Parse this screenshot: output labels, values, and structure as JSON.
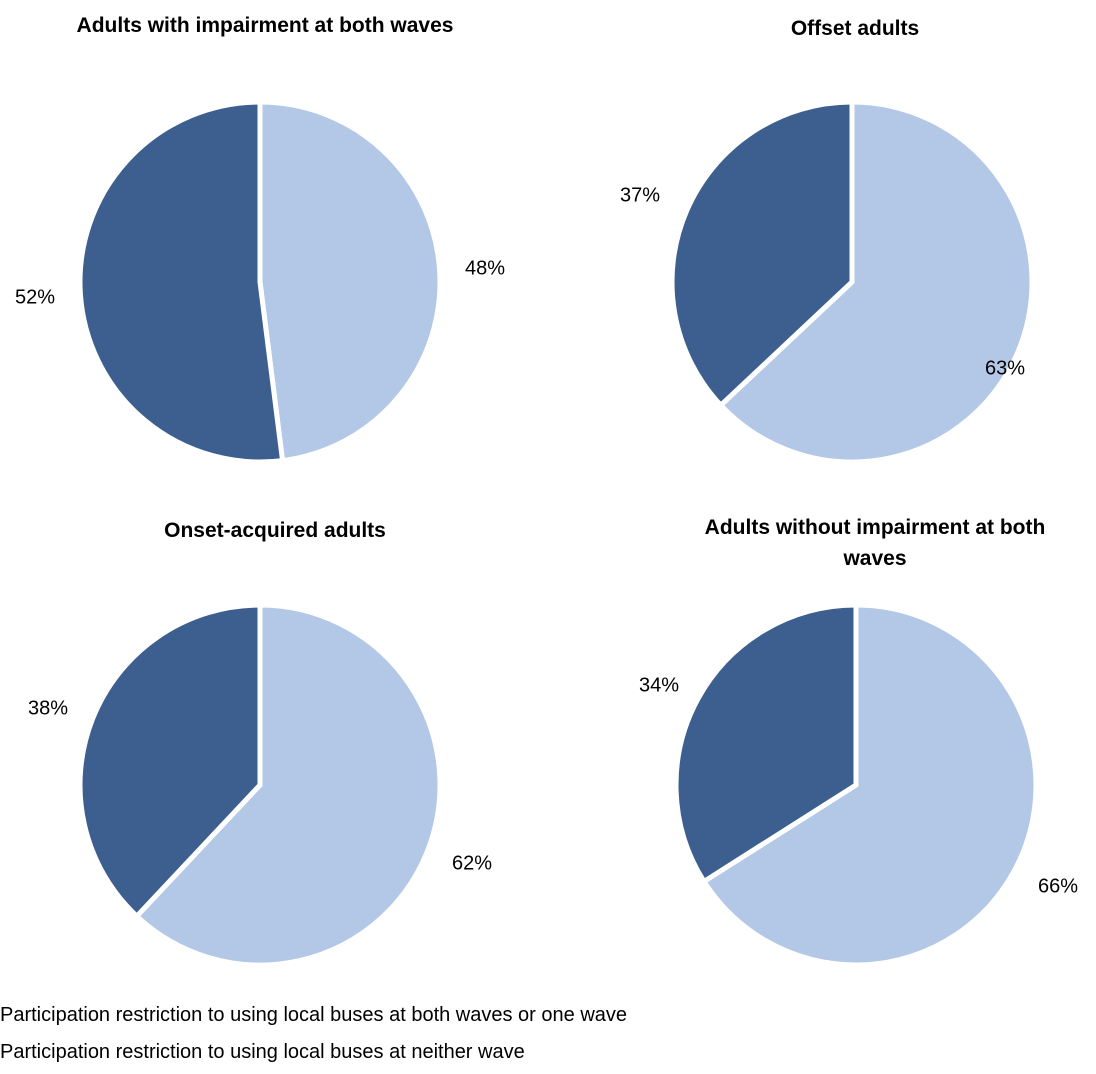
{
  "chart_data": [
    {
      "type": "pie",
      "title": "Adults with impairment at both waves",
      "slices": [
        {
          "label": "Participation restriction to using local buses at neither wave",
          "value": 48,
          "display": "48%"
        },
        {
          "label": "Participation restriction to using local buses at both waves or one wave",
          "value": 52,
          "display": "52%"
        }
      ]
    },
    {
      "type": "pie",
      "title": "Offset adults",
      "slices": [
        {
          "label": "Participation restriction to using local buses at neither wave",
          "value": 63,
          "display": "63%"
        },
        {
          "label": "Participation restriction to using local buses at both waves or one wave",
          "value": 37,
          "display": "37%"
        }
      ]
    },
    {
      "type": "pie",
      "title": "Onset-acquired adults",
      "slices": [
        {
          "label": "Participation restriction to using local buses at neither wave",
          "value": 62,
          "display": "62%"
        },
        {
          "label": "Participation restriction to using local buses at both waves or one wave",
          "value": 38,
          "display": "38%"
        }
      ]
    },
    {
      "type": "pie",
      "title": "Adults without impairment at both waves",
      "slices": [
        {
          "label": "Participation restriction to using local buses at neither wave",
          "value": 66,
          "display": "66%"
        },
        {
          "label": "Participation restriction to using local buses at both waves or one wave",
          "value": 34,
          "display": "34%"
        }
      ]
    }
  ],
  "legend": {
    "items": [
      {
        "label": "Participation restriction to using local buses at both waves or one wave",
        "color": "#3c5f8f"
      },
      {
        "label": "Participation restriction to using local buses at neither wave",
        "color": "#b3c7e6"
      }
    ]
  },
  "colors": {
    "neither": "#b3c7e6",
    "restricted": "#3c5f8f"
  }
}
